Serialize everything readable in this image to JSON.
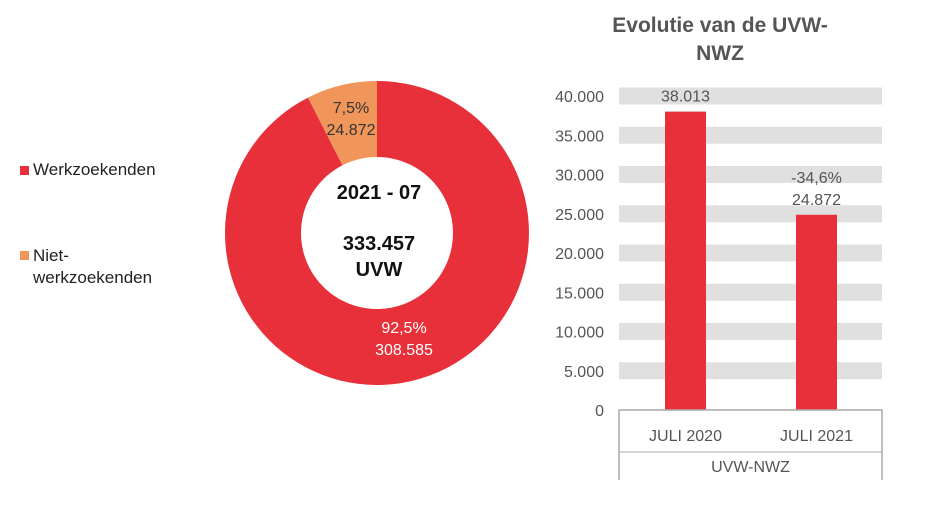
{
  "colors": {
    "werkzoekenden": "#e8303a",
    "niet": "#f0965a",
    "band": "#e0e0e0",
    "text": "#555555"
  },
  "chart_data": [
    {
      "type": "pie",
      "donut": true,
      "legend": [
        "Werkzoekenden",
        "Niet-werkzoekenden"
      ],
      "legend_lines": [
        [
          "Werkzoekenden"
        ],
        [
          "Niet-",
          "werkzoekenden"
        ]
      ],
      "slices": [
        {
          "name": "Werkzoekenden",
          "percent": 92.5,
          "value": 308585,
          "pct_label": "92,5%",
          "val_label": "308.585"
        },
        {
          "name": "Niet-werkzoekenden",
          "percent": 7.5,
          "value": 24872,
          "pct_label": "7,5%",
          "val_label": "24.872"
        }
      ],
      "center": {
        "period": "2021 - 07",
        "total": "333.457",
        "unit": "UVW"
      },
      "legend_placement": "left"
    },
    {
      "type": "bar",
      "title_lines": [
        "Evolutie van de UVW-",
        "NWZ"
      ],
      "categories": [
        "JULI 2020",
        "JULI 2021"
      ],
      "group_label": "UVW-NWZ",
      "values": [
        38013,
        24872
      ],
      "data_labels": [
        [
          "38.013"
        ],
        [
          "-34,6%",
          "24.872"
        ]
      ],
      "ylim": [
        0,
        40000
      ],
      "yticks": [
        0,
        5000,
        10000,
        15000,
        20000,
        25000,
        30000,
        35000,
        40000
      ],
      "ytick_labels": [
        "0",
        "5.000",
        "10.000",
        "15.000",
        "20.000",
        "25.000",
        "30.000",
        "35.000",
        "40.000"
      ],
      "grid": true
    }
  ]
}
